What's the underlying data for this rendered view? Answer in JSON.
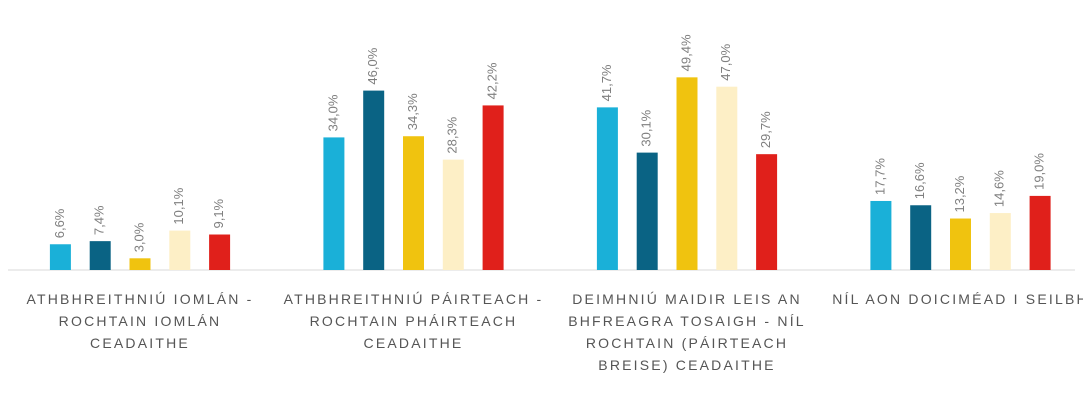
{
  "chart_data": {
    "type": "bar",
    "categories": [
      "ATHBHREITHNIÚ IOMLÁN - ROCHTAIN IOMLÁN CEADAITHE",
      "ATHBHREITHNIÚ PÁIRTEACH - ROCHTAIN PHÁIRTEACH CEADAITHE",
      "DEIMHNIÚ MAIDIR LEIS AN BHFREAGRA TOSAIGH - NÍL ROCHTAIN (PÁIRTEACH BREISE) CEADAITHE",
      "NÍL AON DOICIMÉAD I SEILBH"
    ],
    "series": [
      {
        "color": "#1ab0d8",
        "values": [
          6.6,
          34.0,
          41.7,
          17.7
        ],
        "value_labels": [
          "6,6%",
          "34,0%",
          "41,7%",
          "17,7%"
        ]
      },
      {
        "color": "#0a6384",
        "values": [
          7.4,
          46.0,
          30.1,
          16.6
        ],
        "value_labels": [
          "7,4%",
          "46,0%",
          "30,1%",
          "16,6%"
        ]
      },
      {
        "color": "#f0c30f",
        "values": [
          3.0,
          34.3,
          49.4,
          13.2
        ],
        "value_labels": [
          "3,0%",
          "34,3%",
          "49,4%",
          "13,2%"
        ]
      },
      {
        "color": "#fdefc6",
        "values": [
          10.1,
          28.3,
          47.0,
          14.6
        ],
        "value_labels": [
          "10,1%",
          "28,3%",
          "47,0%",
          "14,6%"
        ]
      },
      {
        "color": "#e0201b",
        "values": [
          9.1,
          42.2,
          29.7,
          19.0
        ],
        "value_labels": [
          "9,1%",
          "42,2%",
          "29,7%",
          "19,0%"
        ]
      }
    ],
    "ylim": [
      0,
      60
    ]
  }
}
